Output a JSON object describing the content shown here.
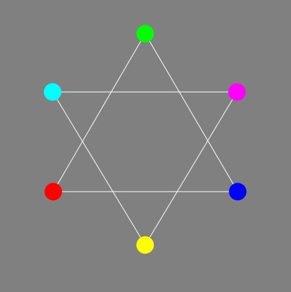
{
  "diagram": {
    "background": "#808080",
    "line_color": "#ffffff",
    "nodes": [
      {
        "id": "green",
        "color": "#00ff00"
      },
      {
        "id": "magenta",
        "color": "#ff00ff"
      },
      {
        "id": "blue",
        "color": "#0000ff"
      },
      {
        "id": "yellow",
        "color": "#ffff00"
      },
      {
        "id": "red",
        "color": "#ff0000"
      },
      {
        "id": "cyan",
        "color": "#00ffff"
      }
    ],
    "triangles": [
      [
        "green",
        "blue",
        "red"
      ],
      [
        "cyan",
        "magenta",
        "yellow"
      ]
    ]
  }
}
